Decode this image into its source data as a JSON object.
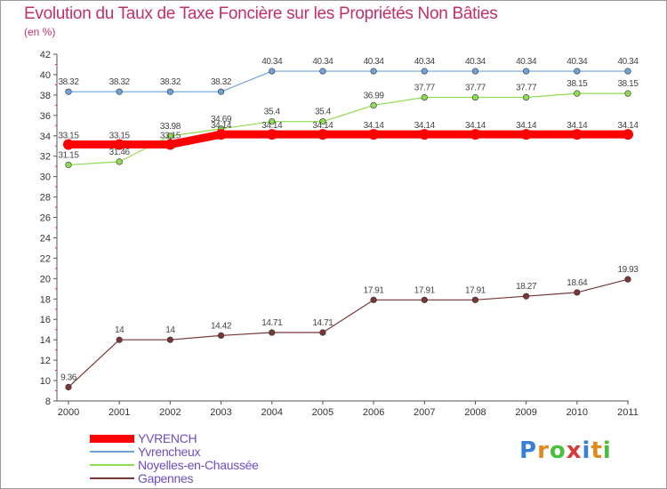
{
  "chart_data": {
    "type": "line",
    "title": "Evolution du Taux de Taxe Foncière sur les Propriétés Non Bâties",
    "subtitle": "(en %)",
    "xlabel": "",
    "ylabel": "(en %)",
    "x": [
      "2000",
      "2001",
      "2002",
      "2003",
      "2004",
      "2005",
      "2006",
      "2007",
      "2008",
      "2009",
      "2010",
      "2011"
    ],
    "ylim": [
      8,
      42
    ],
    "yticks": [
      8,
      10,
      12,
      14,
      16,
      18,
      20,
      22,
      24,
      26,
      28,
      30,
      32,
      34,
      36,
      38,
      40,
      42
    ],
    "grid": false,
    "legend_position": "bottom-left",
    "series": [
      {
        "name": "YVRENCH",
        "color": "#ff0000",
        "values": [
          33.15,
          33.15,
          33.15,
          34.14,
          34.14,
          34.14,
          34.14,
          34.14,
          34.14,
          34.14,
          34.14,
          34.14
        ],
        "labels": [
          "33.15",
          "33.15",
          "33.15",
          "34.14",
          "34.14",
          "34.14",
          "34.14",
          "34.14",
          "34.14",
          "34.14",
          "34.14",
          "34.14"
        ]
      },
      {
        "name": "Yvrencheux",
        "color": "#6fa3d8",
        "values": [
          38.32,
          38.32,
          38.32,
          38.32,
          40.34,
          40.34,
          40.34,
          40.34,
          40.34,
          40.34,
          40.34,
          40.34
        ],
        "labels": [
          "38.32",
          "38.32",
          "38.32",
          "38.32",
          "40.34",
          "40.34",
          "40.34",
          "40.34",
          "40.34",
          "40.34",
          "40.34",
          "40.34"
        ]
      },
      {
        "name": "Noyelles-en-Chaussée",
        "color": "#8fdc50",
        "values": [
          31.15,
          31.46,
          33.98,
          34.69,
          35.4,
          35.4,
          36.99,
          37.77,
          37.77,
          37.77,
          38.15,
          38.15
        ],
        "labels": [
          "31.15",
          "31.46",
          "33.98",
          "34.69",
          "35.4",
          "35.4",
          "36.99",
          "37.77",
          "37.77",
          "37.77",
          "38.15",
          "38.15"
        ]
      },
      {
        "name": "Gapennes",
        "color": "#7a3535",
        "values": [
          9.36,
          14,
          14,
          14.42,
          14.71,
          14.71,
          17.91,
          17.91,
          17.91,
          18.27,
          18.64,
          19.93
        ],
        "labels": [
          "9.36",
          "14",
          "14",
          "14.42",
          "14.71",
          "14.71",
          "17.91",
          "17.91",
          "17.91",
          "18.27",
          "18.64",
          "19.93"
        ]
      }
    ]
  },
  "logo": {
    "letters": [
      "P",
      "r",
      "o",
      "x",
      "i",
      "t",
      "i"
    ],
    "colors": [
      "#3a7fd5",
      "#e08a1e",
      "#4bbf3c",
      "#d63a3a",
      "#3a7fd5",
      "#e08a1e",
      "#4bbf3c"
    ]
  }
}
